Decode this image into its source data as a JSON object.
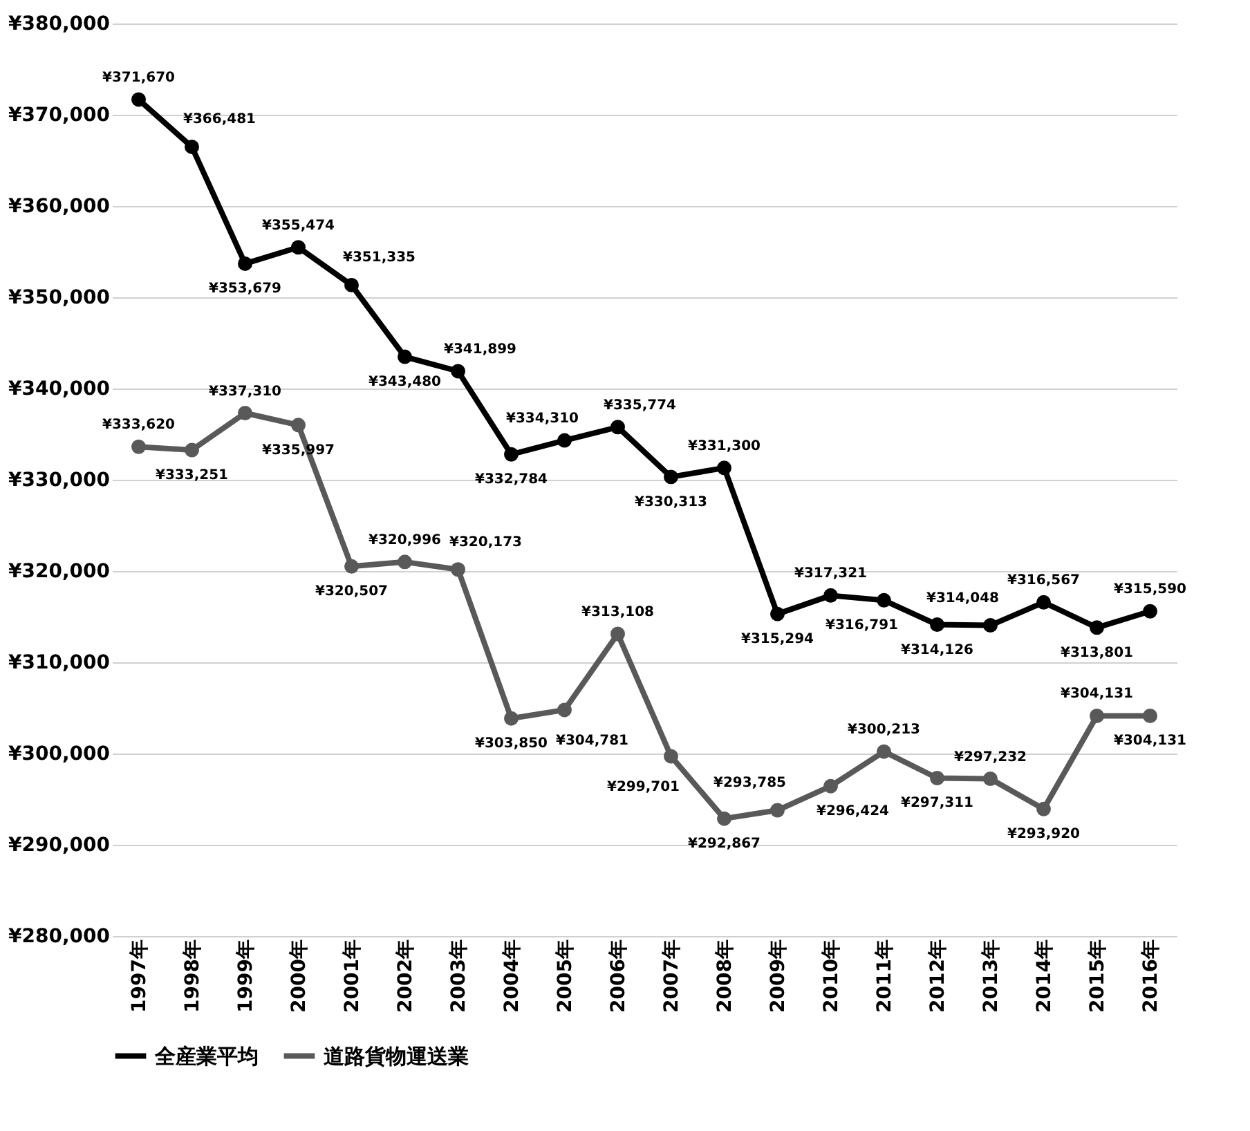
{
  "chart_data": {
    "type": "line",
    "categories": [
      "1997年",
      "1998年",
      "1999年",
      "2000年",
      "2001年",
      "2002年",
      "2003年",
      "2004年",
      "2005年",
      "2006年",
      "2007年",
      "2008年",
      "2009年",
      "2010年",
      "2011年",
      "2012年",
      "2013年",
      "2014年",
      "2015年",
      "2016年"
    ],
    "series": [
      {
        "name": "全産業平均",
        "color": "#000000",
        "values": [
          371670,
          366481,
          353679,
          355474,
          351335,
          343480,
          341899,
          332784,
          334310,
          335774,
          330313,
          331300,
          315294,
          317321,
          316791,
          314126,
          314048,
          316567,
          313801,
          315590
        ],
        "value_labels": [
          "¥371,670",
          "¥366,481",
          "¥353,679",
          "¥355,474",
          "¥351,335",
          "¥343,480",
          "¥341,899",
          "¥332,784",
          "¥334,310",
          "¥335,774",
          "¥330,313",
          "¥331,300",
          "¥315,294",
          "¥317,321",
          "¥316,791",
          "¥314,126",
          "¥314,048",
          "¥316,567",
          "¥313,801",
          "¥315,590"
        ]
      },
      {
        "name": "道路貨物運送業",
        "color": "#595959",
        "values": [
          333620,
          333251,
          337310,
          335997,
          320507,
          320996,
          320173,
          303850,
          304781,
          313108,
          299701,
          292867,
          293785,
          296424,
          300213,
          297311,
          297232,
          293920,
          304131,
          304131
        ],
        "value_labels": [
          "¥333,620",
          "¥333,251",
          "¥337,310",
          "¥335,997",
          "¥320,507",
          "¥320,996",
          "¥320,173",
          "¥303,850",
          "¥304,781",
          "¥313,108",
          "¥299,701",
          "¥292,867",
          "¥293,785",
          "¥296,424",
          "¥300,213",
          "¥297,311",
          "¥297,232",
          "¥293,920",
          "¥304,131",
          "¥304,131"
        ]
      }
    ],
    "ylim": [
      280000,
      380000
    ],
    "yticks": [
      {
        "value": 280000,
        "label": "¥280,000"
      },
      {
        "value": 290000,
        "label": "¥290,000"
      },
      {
        "value": 300000,
        "label": "¥300,000"
      },
      {
        "value": 310000,
        "label": "¥310,000"
      },
      {
        "value": 320000,
        "label": "¥320,000"
      },
      {
        "value": 330000,
        "label": "¥330,000"
      },
      {
        "value": 340000,
        "label": "¥340,000"
      },
      {
        "value": 350000,
        "label": "¥350,000"
      },
      {
        "value": 360000,
        "label": "¥360,000"
      },
      {
        "value": 370000,
        "label": "¥370,000"
      },
      {
        "value": 380000,
        "label": "¥380,000"
      }
    ],
    "grid": "y",
    "legend": "bottom",
    "marker": "circle",
    "line_style": "solid"
  }
}
